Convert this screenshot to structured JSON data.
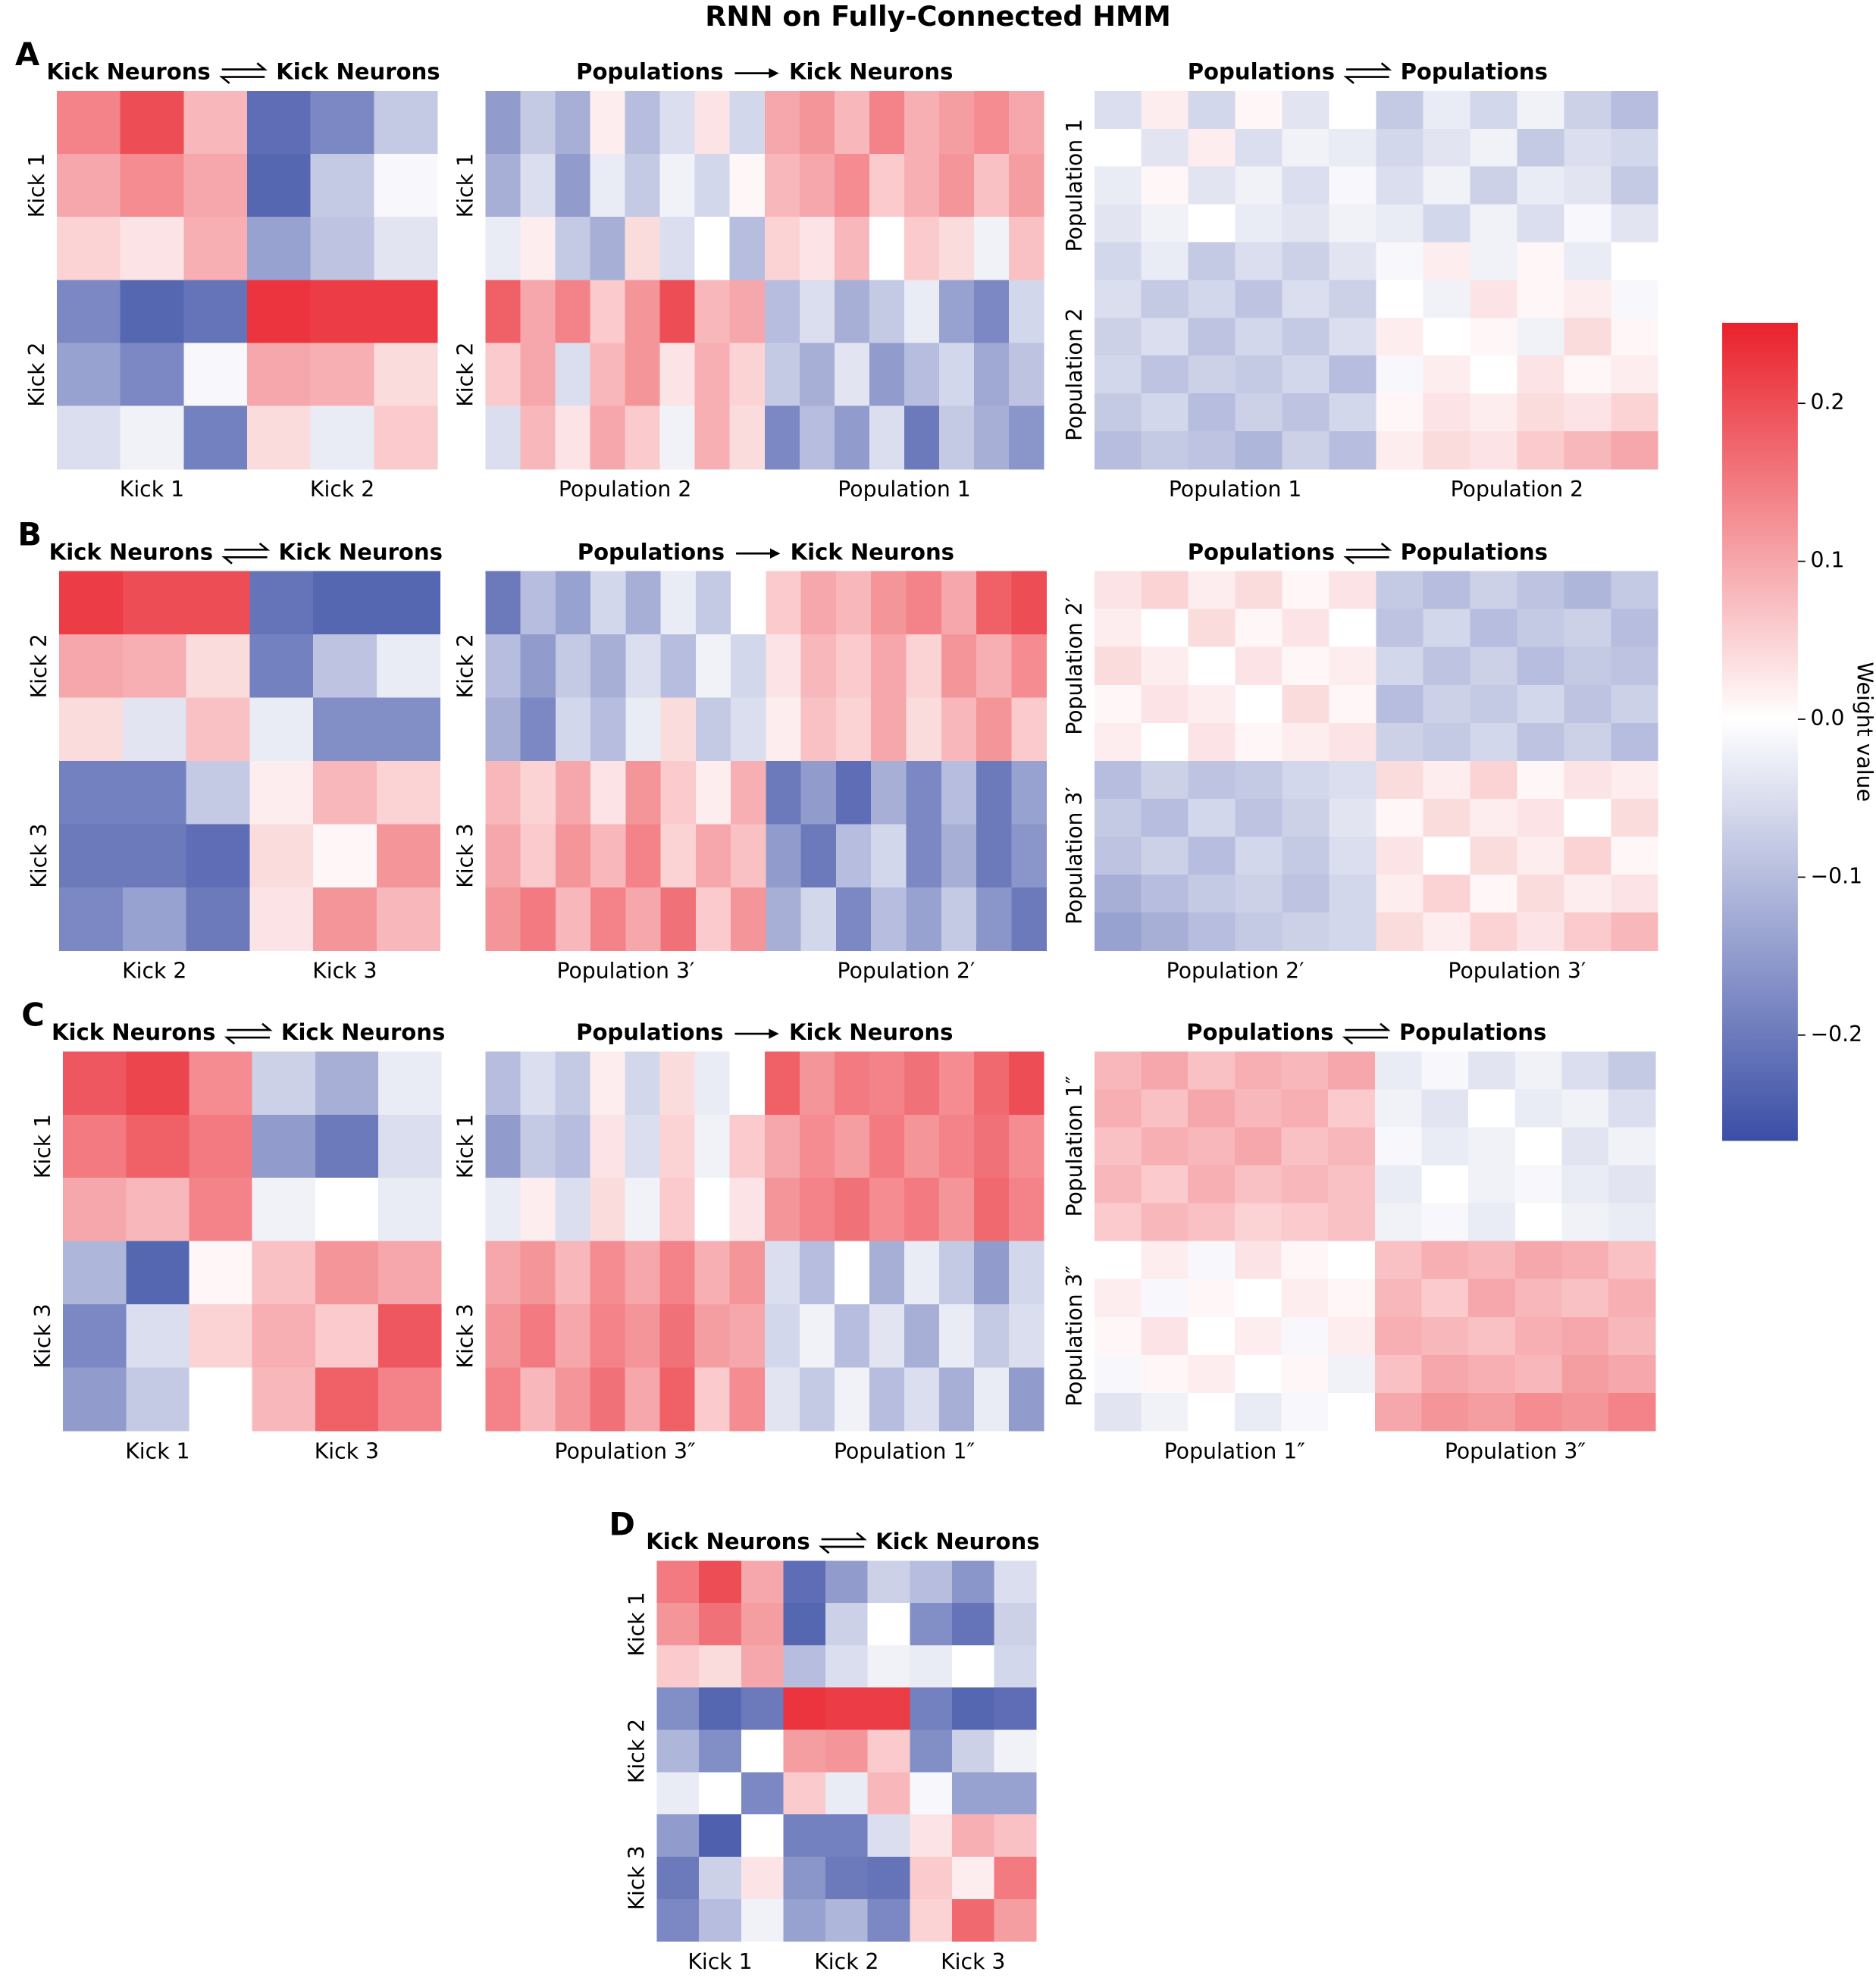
{
  "title": "RNN on Fully-Connected HMM",
  "colorbar": {
    "label": "Weight value",
    "lim": [
      -0.267,
      0.251
    ],
    "colors": [
      "#3b4ea6",
      "#ffffff",
      "#e9212b"
    ],
    "ticks": [
      0.2,
      0.1,
      {
        "value": 0,
        "label": "0.0"
      },
      {
        "value": -0.1,
        "label": "−0.1"
      },
      {
        "value": -0.2,
        "label": "−0.2"
      }
    ]
  },
  "chart_data": [
    {
      "type": "heatmap",
      "panel": "A",
      "source": "Kick Neurons",
      "target": "Kick Neurons",
      "bidirectional": true,
      "x_groups": [
        "Kick 1",
        "Kick 2"
      ],
      "y_groups": [
        "Kick 1",
        "Kick 2"
      ],
      "values": [
        [
          0.14,
          0.2,
          0.08,
          -0.22,
          -0.18,
          -0.08
        ],
        [
          0.1,
          0.13,
          0.1,
          -0.23,
          -0.08,
          -0.01
        ],
        [
          0.05,
          0.03,
          0.09,
          -0.14,
          -0.09,
          -0.04
        ],
        [
          -0.18,
          -0.23,
          -0.21,
          0.23,
          0.22,
          0.22
        ],
        [
          -0.14,
          -0.18,
          -0.01,
          0.1,
          0.09,
          0.04
        ],
        [
          -0.05,
          -0.02,
          -0.19,
          0.04,
          -0.03,
          0.06
        ]
      ]
    },
    {
      "type": "heatmap",
      "source": "Populations",
      "target": "Kick Neurons",
      "bidirectional": false,
      "x_groups": [
        "Population 2",
        "Population 1"
      ],
      "y_groups": [
        "Kick 1",
        "Kick 2"
      ],
      "values": [
        [
          -0.15,
          -0.08,
          -0.12,
          0.02,
          -0.1,
          -0.05,
          0.03,
          -0.06,
          0.1,
          0.12,
          0.08,
          0.14,
          0.09,
          0.11,
          0.13,
          0.1
        ],
        [
          -0.12,
          -0.05,
          -0.15,
          -0.03,
          -0.08,
          -0.02,
          -0.06,
          0.01,
          0.08,
          0.1,
          0.13,
          0.06,
          0.09,
          0.12,
          0.07,
          0.11
        ],
        [
          -0.03,
          0.02,
          -0.08,
          -0.12,
          0.04,
          -0.05,
          0,
          -0.1,
          0.05,
          0.03,
          0.08,
          0,
          0.06,
          0.04,
          -0.02,
          0.07
        ],
        [
          0.18,
          0.1,
          0.14,
          0.06,
          0.12,
          0.2,
          0.08,
          0.1,
          -0.1,
          -0.05,
          -0.12,
          -0.08,
          -0.03,
          -0.14,
          -0.18,
          -0.06
        ],
        [
          0.06,
          0.1,
          -0.05,
          0.08,
          0.12,
          0.03,
          0.09,
          0.05,
          -0.08,
          -0.12,
          -0.04,
          -0.15,
          -0.1,
          -0.06,
          -0.13,
          -0.09
        ],
        [
          -0.05,
          0.08,
          0.03,
          0.1,
          0.06,
          -0.02,
          0.09,
          0.04,
          -0.18,
          -0.1,
          -0.15,
          -0.05,
          -0.2,
          -0.08,
          -0.12,
          -0.16
        ]
      ]
    },
    {
      "type": "heatmap",
      "source": "Populations",
      "target": "Populations",
      "bidirectional": true,
      "x_groups": [
        "Population 1",
        "Population 2"
      ],
      "y_groups": [
        "Population 1",
        "Population 2"
      ],
      "values": [
        [
          -0.05,
          0.02,
          -0.06,
          0.01,
          -0.04,
          0,
          -0.08,
          -0.03,
          -0.06,
          -0.02,
          -0.07,
          -0.1
        ],
        [
          0,
          -0.04,
          0.02,
          -0.05,
          -0.02,
          -0.03,
          -0.06,
          -0.04,
          -0.02,
          -0.08,
          -0.05,
          -0.06
        ],
        [
          -0.03,
          0.01,
          -0.04,
          -0.02,
          -0.05,
          -0.01,
          -0.05,
          -0.02,
          -0.07,
          -0.03,
          -0.04,
          -0.08
        ],
        [
          -0.04,
          -0.02,
          0,
          -0.03,
          -0.04,
          -0.02,
          -0.03,
          -0.06,
          -0.02,
          -0.05,
          -0.01,
          -0.04
        ],
        [
          -0.06,
          -0.03,
          -0.08,
          -0.05,
          -0.07,
          -0.04,
          -0.01,
          0.02,
          -0.02,
          0.01,
          -0.03,
          0
        ],
        [
          -0.05,
          -0.08,
          -0.06,
          -0.09,
          -0.05,
          -0.07,
          0,
          -0.02,
          0.03,
          0.01,
          0.02,
          -0.01
        ],
        [
          -0.07,
          -0.05,
          -0.09,
          -0.06,
          -0.08,
          -0.05,
          0.02,
          0,
          0.01,
          -0.02,
          0.04,
          0.01
        ],
        [
          -0.06,
          -0.09,
          -0.07,
          -0.08,
          -0.06,
          -0.1,
          -0.01,
          0.02,
          0,
          0.03,
          0.01,
          0.02
        ],
        [
          -0.08,
          -0.06,
          -0.1,
          -0.07,
          -0.09,
          -0.06,
          0.01,
          0.03,
          0.02,
          0.04,
          0.03,
          0.05
        ],
        [
          -0.1,
          -0.08,
          -0.09,
          -0.11,
          -0.07,
          -0.1,
          0.02,
          0.04,
          0.03,
          0.06,
          0.08,
          0.1
        ]
      ]
    },
    {
      "type": "heatmap",
      "panel": "B",
      "source": "Kick Neurons",
      "target": "Kick Neurons",
      "bidirectional": true,
      "x_groups": [
        "Kick 2",
        "Kick 3"
      ],
      "y_groups": [
        "Kick 2",
        "Kick 3"
      ],
      "values": [
        [
          0.22,
          0.2,
          0.2,
          -0.21,
          -0.23,
          -0.23
        ],
        [
          0.1,
          0.09,
          0.04,
          -0.19,
          -0.09,
          -0.03
        ],
        [
          0.04,
          -0.04,
          0.07,
          -0.03,
          -0.17,
          -0.17
        ],
        [
          -0.19,
          -0.19,
          -0.08,
          0.02,
          0.08,
          0.05
        ],
        [
          -0.2,
          -0.2,
          -0.22,
          0.04,
          0.01,
          0.12
        ],
        [
          -0.18,
          -0.14,
          -0.2,
          0.03,
          0.12,
          0.08
        ]
      ]
    },
    {
      "type": "heatmap",
      "source": "Populations",
      "target": "Kick Neurons",
      "bidirectional": false,
      "x_groups": [
        "Population 3′",
        "Population 2′"
      ],
      "y_groups": [
        "Kick 2",
        "Kick 3"
      ],
      "values": [
        [
          -0.2,
          -0.1,
          -0.14,
          -0.06,
          -0.12,
          -0.03,
          -0.08,
          0,
          0.06,
          0.1,
          0.08,
          0.12,
          0.14,
          0.1,
          0.18,
          0.2
        ],
        [
          -0.1,
          -0.15,
          -0.08,
          -0.12,
          -0.05,
          -0.1,
          -0.02,
          -0.06,
          0.03,
          0.08,
          0.06,
          0.1,
          0.05,
          0.12,
          0.09,
          0.13
        ],
        [
          -0.12,
          -0.18,
          -0.06,
          -0.1,
          -0.03,
          0.04,
          -0.08,
          -0.05,
          0.02,
          0.07,
          0.05,
          0.1,
          0.04,
          0.08,
          0.12,
          0.06
        ],
        [
          0.08,
          0.05,
          0.1,
          0.03,
          0.12,
          0.06,
          0.02,
          0.09,
          -0.2,
          -0.15,
          -0.22,
          -0.12,
          -0.18,
          -0.1,
          -0.2,
          -0.14
        ],
        [
          0.1,
          0.06,
          0.12,
          0.08,
          0.14,
          0.05,
          0.1,
          0.07,
          -0.15,
          -0.2,
          -0.1,
          -0.06,
          -0.18,
          -0.12,
          -0.2,
          -0.16
        ],
        [
          0.12,
          0.15,
          0.08,
          0.14,
          0.1,
          0.16,
          0.06,
          0.12,
          -0.12,
          -0.06,
          -0.18,
          -0.1,
          -0.14,
          -0.08,
          -0.16,
          -0.2
        ]
      ]
    },
    {
      "type": "heatmap",
      "source": "Populations",
      "target": "Populations",
      "bidirectional": true,
      "x_groups": [
        "Population 2′",
        "Population 3′"
      ],
      "y_groups": [
        "Population 2′",
        "Population 3′"
      ],
      "values": [
        [
          0.03,
          0.05,
          0.02,
          0.04,
          0.01,
          0.03,
          -0.08,
          -0.1,
          -0.07,
          -0.09,
          -0.11,
          -0.08
        ],
        [
          0.02,
          0,
          0.04,
          0.01,
          0.03,
          0,
          -0.09,
          -0.06,
          -0.1,
          -0.08,
          -0.07,
          -0.1
        ],
        [
          0.04,
          0.02,
          0,
          0.03,
          0.01,
          0.02,
          -0.06,
          -0.09,
          -0.07,
          -0.1,
          -0.08,
          -0.09
        ],
        [
          0.01,
          0.03,
          0.02,
          0,
          0.04,
          0.01,
          -0.1,
          -0.07,
          -0.08,
          -0.06,
          -0.09,
          -0.07
        ],
        [
          0.02,
          0,
          0.03,
          0.01,
          0.02,
          0.03,
          -0.07,
          -0.08,
          -0.06,
          -0.09,
          -0.07,
          -0.1
        ],
        [
          -0.1,
          -0.07,
          -0.09,
          -0.08,
          -0.06,
          -0.05,
          0.04,
          0.02,
          0.05,
          0.01,
          0.03,
          0.02
        ],
        [
          -0.08,
          -0.1,
          -0.06,
          -0.09,
          -0.07,
          -0.04,
          0.01,
          0.04,
          0.02,
          0.03,
          0,
          0.04
        ],
        [
          -0.09,
          -0.07,
          -0.1,
          -0.06,
          -0.08,
          -0.05,
          0.03,
          0,
          0.04,
          0.02,
          0.05,
          0.01
        ],
        [
          -0.12,
          -0.1,
          -0.08,
          -0.07,
          -0.09,
          -0.06,
          0.02,
          0.05,
          0.01,
          0.04,
          0.02,
          0.03
        ],
        [
          -0.14,
          -0.12,
          -0.1,
          -0.08,
          -0.07,
          -0.06,
          0.04,
          0.02,
          0.05,
          0.03,
          0.06,
          0.08
        ]
      ]
    },
    {
      "type": "heatmap",
      "panel": "C",
      "source": "Kick Neurons",
      "target": "Kick Neurons",
      "bidirectional": true,
      "x_groups": [
        "Kick 1",
        "Kick 3"
      ],
      "y_groups": [
        "Kick 1",
        "Kick 3"
      ],
      "values": [
        [
          0.19,
          0.21,
          0.13,
          -0.07,
          -0.12,
          -0.03
        ],
        [
          0.15,
          0.18,
          0.15,
          -0.15,
          -0.2,
          -0.05
        ],
        [
          0.1,
          0.08,
          0.14,
          -0.02,
          0,
          -0.03
        ],
        [
          -0.11,
          -0.23,
          0.01,
          0.07,
          0.12,
          0.1
        ],
        [
          -0.18,
          -0.05,
          0.05,
          0.09,
          0.06,
          0.19
        ],
        [
          -0.15,
          -0.08,
          0,
          0.08,
          0.18,
          0.14
        ]
      ]
    },
    {
      "type": "heatmap",
      "source": "Populations",
      "target": "Kick Neurons",
      "bidirectional": false,
      "x_groups": [
        "Population 3″",
        "Population 1″"
      ],
      "y_groups": [
        "Kick 1",
        "Kick 3"
      ],
      "values": [
        [
          -0.1,
          -0.05,
          -0.08,
          0.02,
          -0.06,
          0.04,
          -0.03,
          0,
          0.18,
          0.12,
          0.15,
          0.14,
          0.16,
          0.13,
          0.17,
          0.2
        ],
        [
          -0.15,
          -0.08,
          -0.1,
          0.03,
          -0.05,
          0.05,
          -0.02,
          0.06,
          0.1,
          0.13,
          0.11,
          0.15,
          0.12,
          0.14,
          0.16,
          0.13
        ],
        [
          -0.03,
          0.02,
          -0.05,
          0.04,
          -0.02,
          0.06,
          0,
          0.03,
          0.12,
          0.14,
          0.16,
          0.13,
          0.15,
          0.12,
          0.17,
          0.14
        ],
        [
          0.1,
          0.12,
          0.08,
          0.13,
          0.1,
          0.14,
          0.09,
          0.12,
          -0.05,
          -0.1,
          0,
          -0.12,
          -0.03,
          -0.08,
          -0.15,
          -0.06
        ],
        [
          0.12,
          0.15,
          0.1,
          0.14,
          0.12,
          0.16,
          0.11,
          0.1,
          -0.06,
          -0.02,
          -0.1,
          -0.04,
          -0.12,
          -0.03,
          -0.08,
          -0.05
        ],
        [
          0.14,
          0.08,
          0.12,
          0.16,
          0.1,
          0.18,
          0.06,
          0.13,
          -0.04,
          -0.08,
          -0.02,
          -0.1,
          -0.05,
          -0.12,
          -0.03,
          -0.15
        ]
      ]
    },
    {
      "type": "heatmap",
      "source": "Populations",
      "target": "Populations",
      "bidirectional": true,
      "x_groups": [
        "Population 1″",
        "Population 3″"
      ],
      "y_groups": [
        "Population 1″",
        "Population 3″"
      ],
      "values": [
        [
          0.08,
          0.1,
          0.07,
          0.09,
          0.08,
          0.1,
          -0.03,
          -0.01,
          -0.04,
          -0.02,
          -0.05,
          -0.08
        ],
        [
          0.09,
          0.07,
          0.1,
          0.08,
          0.09,
          0.06,
          -0.02,
          -0.04,
          0,
          -0.03,
          -0.02,
          -0.05
        ],
        [
          0.07,
          0.09,
          0.08,
          0.1,
          0.07,
          0.08,
          -0.01,
          -0.03,
          -0.02,
          0,
          -0.04,
          -0.02
        ],
        [
          0.08,
          0.06,
          0.09,
          0.07,
          0.08,
          0.07,
          -0.03,
          0,
          -0.02,
          -0.01,
          -0.03,
          -0.04
        ],
        [
          0.06,
          0.08,
          0.07,
          0.05,
          0.06,
          0.07,
          -0.02,
          -0.01,
          -0.03,
          0,
          -0.02,
          -0.03
        ],
        [
          0,
          0.02,
          -0.01,
          0.03,
          0.01,
          0,
          0.07,
          0.09,
          0.08,
          0.1,
          0.09,
          0.07
        ],
        [
          0.02,
          -0.01,
          0.01,
          0,
          0.02,
          0.01,
          0.08,
          0.06,
          0.1,
          0.08,
          0.07,
          0.09
        ],
        [
          0.01,
          0.03,
          0,
          0.02,
          -0.01,
          0.02,
          0.09,
          0.08,
          0.07,
          0.09,
          0.1,
          0.08
        ],
        [
          -0.01,
          0.01,
          0.02,
          0,
          0.01,
          -0.02,
          0.07,
          0.1,
          0.09,
          0.08,
          0.11,
          0.1
        ],
        [
          -0.04,
          -0.02,
          0,
          -0.03,
          -0.01,
          0,
          0.1,
          0.12,
          0.11,
          0.13,
          0.12,
          0.14
        ]
      ]
    },
    {
      "type": "heatmap",
      "panel": "D",
      "source": "Kick Neurons",
      "target": "Kick Neurons",
      "bidirectional": true,
      "x_groups": [
        "Kick 1",
        "Kick 2",
        "Kick 3"
      ],
      "y_groups": [
        "Kick 1",
        "Kick 2",
        "Kick 3"
      ],
      "values": [
        [
          0.15,
          0.2,
          0.1,
          -0.22,
          -0.15,
          -0.07,
          -0.1,
          -0.16,
          -0.05
        ],
        [
          0.12,
          0.16,
          0.11,
          -0.23,
          -0.07,
          0,
          -0.17,
          -0.21,
          -0.07
        ],
        [
          0.06,
          0.04,
          0.1,
          -0.1,
          -0.05,
          -0.02,
          -0.03,
          0,
          -0.06
        ],
        [
          -0.17,
          -0.23,
          -0.2,
          0.23,
          0.22,
          0.22,
          -0.19,
          -0.23,
          -0.22
        ],
        [
          -0.11,
          -0.17,
          0,
          0.11,
          0.12,
          0.06,
          -0.17,
          -0.07,
          -0.02
        ],
        [
          -0.03,
          0,
          -0.18,
          0.06,
          -0.03,
          0.08,
          -0.01,
          -0.14,
          -0.14
        ],
        [
          -0.15,
          -0.24,
          0,
          -0.19,
          -0.19,
          -0.05,
          0.03,
          0.09,
          0.07
        ],
        [
          -0.2,
          -0.07,
          0.03,
          -0.16,
          -0.2,
          -0.21,
          0.06,
          0.02,
          0.15
        ],
        [
          -0.18,
          -0.1,
          -0.02,
          -0.14,
          -0.11,
          -0.18,
          0.05,
          0.17,
          0.11
        ]
      ]
    }
  ]
}
